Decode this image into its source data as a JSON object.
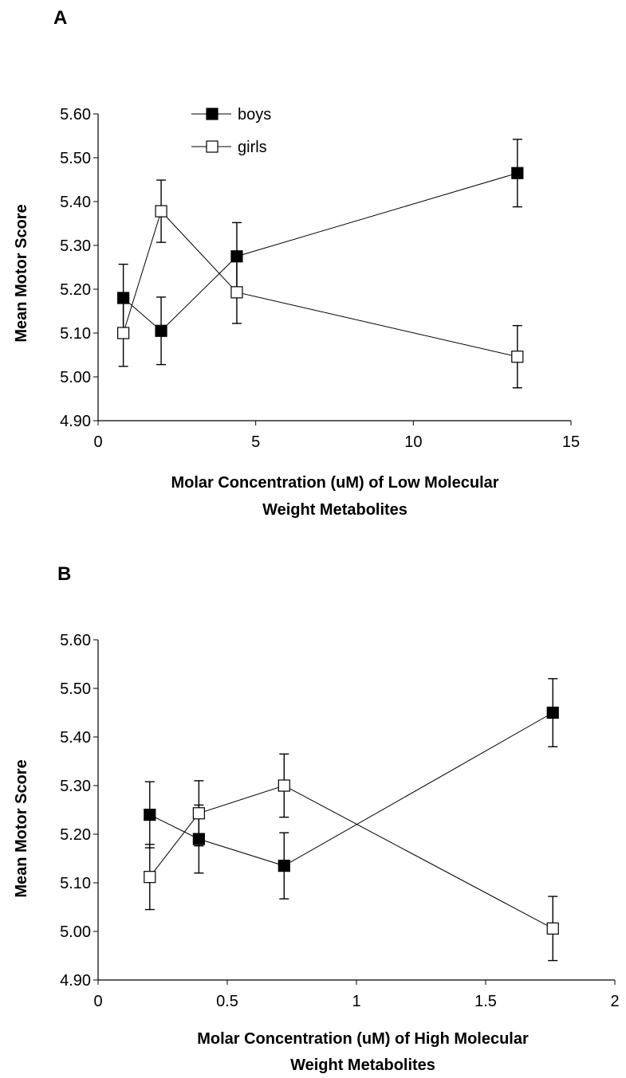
{
  "panels": [
    {
      "label": "A"
    },
    {
      "label": "B"
    }
  ],
  "colors": {
    "boys_marker": "#000000",
    "girls_marker": "#ffffff",
    "line": "#000000"
  },
  "chart_data": [
    {
      "type": "scatter",
      "panel_label": "A",
      "xlabel": [
        "Molar Concentration (uM) of Low Molecular",
        "Weight Metabolites"
      ],
      "ylabel": "Mean Motor Score",
      "xlim": [
        0,
        15
      ],
      "ylim": [
        4.9,
        5.6
      ],
      "xticks": [
        "0",
        "5",
        "10",
        "15"
      ],
      "yticks": [
        "4.90",
        "5.00",
        "5.10",
        "5.20",
        "5.30",
        "5.40",
        "5.50",
        "5.60"
      ],
      "grid": false,
      "legend": {
        "position": "top-left",
        "entries": [
          "boys",
          "girls"
        ]
      },
      "series": [
        {
          "name": "boys",
          "marker": "filled-square",
          "x": [
            0.8,
            2.0,
            4.4,
            13.3
          ],
          "y": [
            5.18,
            5.105,
            5.275,
            5.465
          ],
          "err": [
            0.077,
            0.077,
            0.077,
            0.077
          ]
        },
        {
          "name": "girls",
          "marker": "open-square",
          "x": [
            0.8,
            2.0,
            4.4,
            13.3
          ],
          "y": [
            5.1,
            5.378,
            5.193,
            5.046
          ],
          "err": [
            0.076,
            0.071,
            0.071,
            0.071
          ]
        }
      ]
    },
    {
      "type": "scatter",
      "panel_label": "B",
      "xlabel": [
        "Molar Concentration (uM) of High Molecular",
        "Weight Metabolites"
      ],
      "ylabel": "Mean Motor Score",
      "xlim": [
        0,
        2
      ],
      "ylim": [
        4.9,
        5.6
      ],
      "xticks": [
        "0",
        "0.5",
        "1",
        "1.5",
        "2"
      ],
      "yticks": [
        "4.90",
        "5.00",
        "5.10",
        "5.20",
        "5.30",
        "5.40",
        "5.50",
        "5.60"
      ],
      "grid": false,
      "series": [
        {
          "name": "boys",
          "marker": "filled-square",
          "x": [
            0.2,
            0.39,
            0.72,
            1.76
          ],
          "y": [
            5.24,
            5.19,
            5.135,
            5.45
          ],
          "err": [
            0.068,
            0.07,
            0.068,
            0.07
          ]
        },
        {
          "name": "girls",
          "marker": "open-square",
          "x": [
            0.2,
            0.39,
            0.72,
            1.76
          ],
          "y": [
            5.112,
            5.243,
            5.3,
            5.006
          ],
          "err": [
            0.067,
            0.067,
            0.065,
            0.066
          ]
        }
      ]
    }
  ]
}
